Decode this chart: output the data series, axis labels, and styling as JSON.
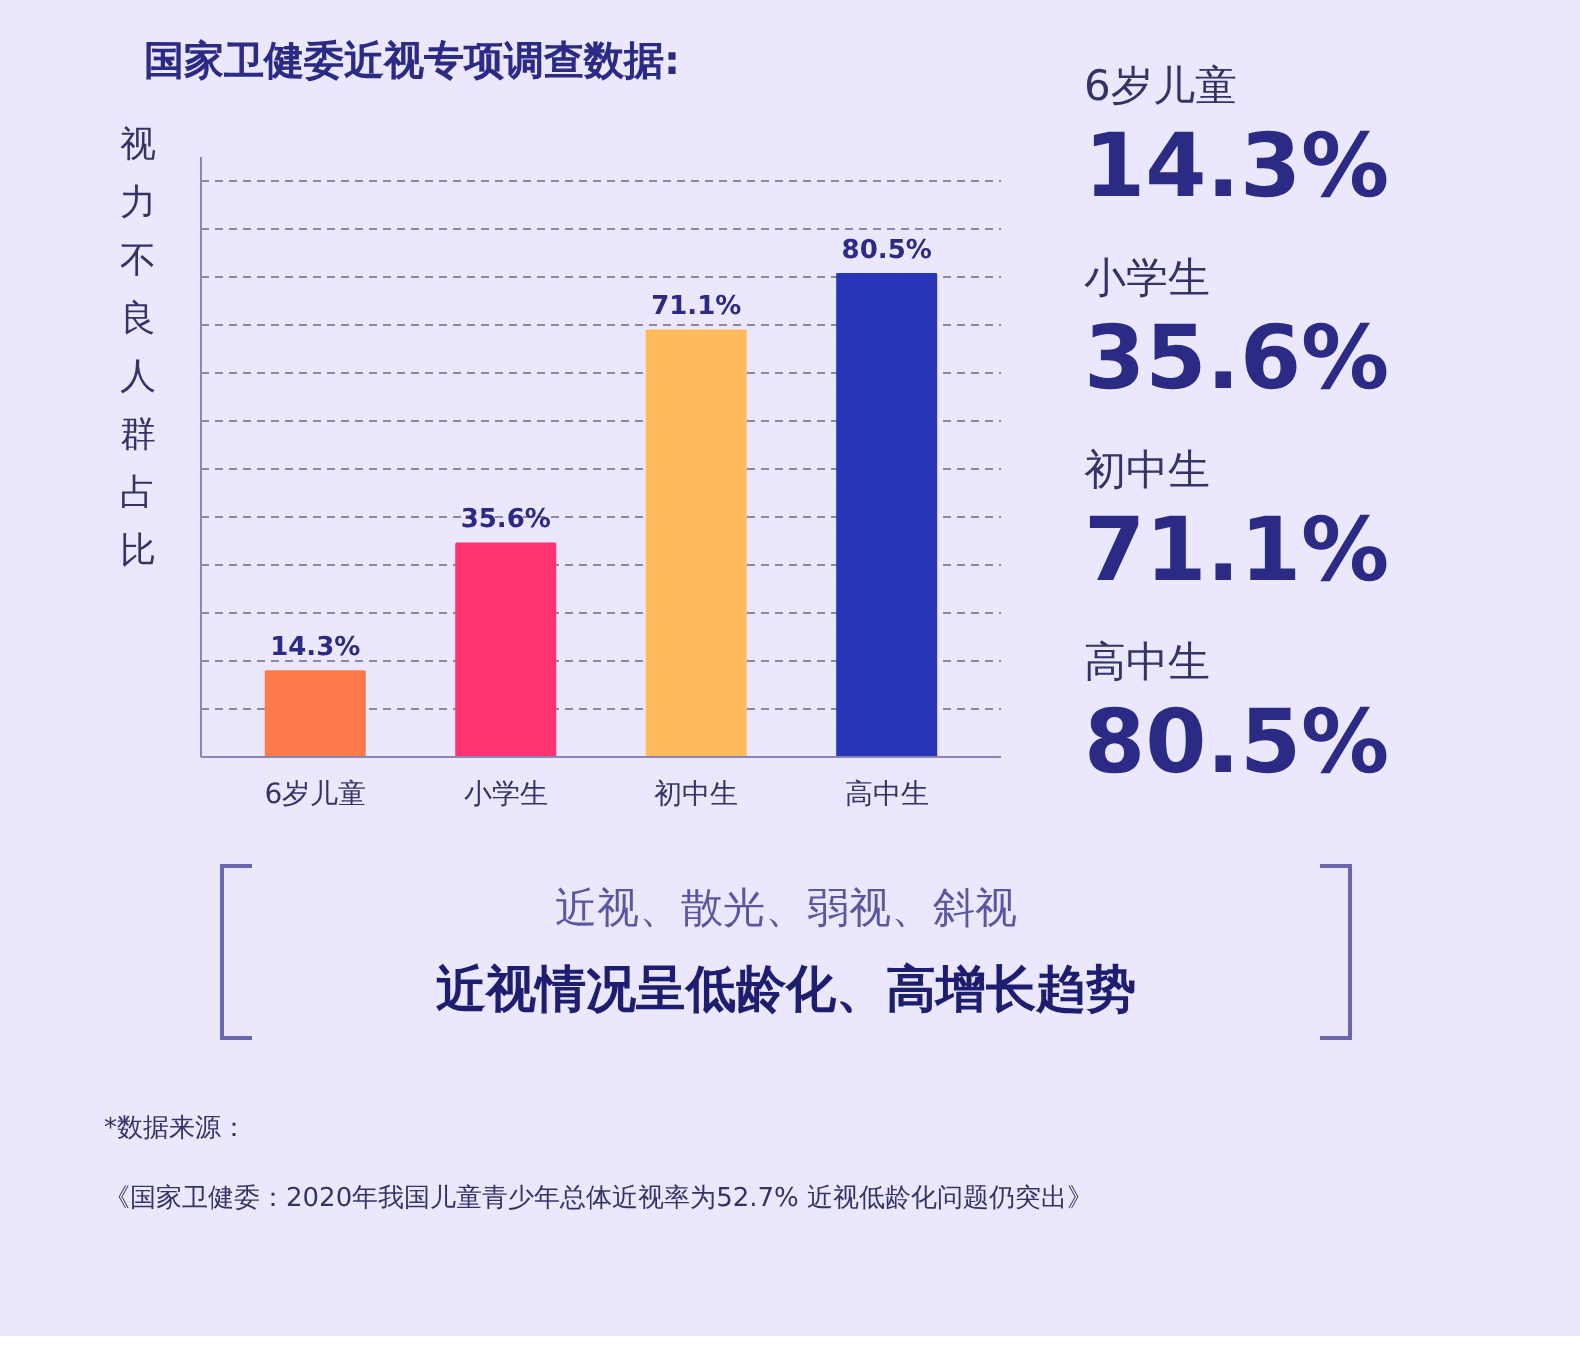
{
  "chart_data": {
    "type": "bar",
    "title": "国家卫健委近视专项调查数据:",
    "ylabel": "视力不良人群占比",
    "categories": [
      "6岁儿童",
      "小学生",
      "初中生",
      "高中生"
    ],
    "values": [
      14.3,
      35.6,
      71.1,
      80.5
    ],
    "colors": [
      "#ff7a4a",
      "#ff3370",
      "#ffbb5c",
      "#2a36b8"
    ],
    "value_labels": [
      "14.3%",
      "35.6%",
      "71.1%",
      "80.5%"
    ],
    "ylim": [
      0,
      100
    ],
    "yticks": [
      {
        "value": 8,
        "label": null
      },
      {
        "value": 16,
        "label": null
      },
      {
        "value": 24,
        "label": null
      },
      {
        "value": 32,
        "label": null
      },
      {
        "value": 40,
        "label": null
      },
      {
        "value": 48,
        "label": null
      },
      {
        "value": 56,
        "label": null
      },
      {
        "value": 64,
        "label": null
      },
      {
        "value": 72,
        "label": null
      },
      {
        "value": 80,
        "label": null
      },
      {
        "value": 88,
        "label": null
      },
      {
        "value": 96,
        "label": null
      }
    ],
    "grid": "y",
    "tick_labels": "x",
    "legend": false,
    "annotations": [
      "6岁儿童",
      "14.3%",
      "小学生",
      "35.6%",
      "初中生",
      "71.1%",
      "高中生",
      "80.5%",
      "近视、散光、弱视、斜视",
      "近视情况呈低龄化、高增长趋势",
      "*数据来源：",
      "《国家卫健委：2020年我国儿童青少年总体近视率为52.7% 近视低龄化问题仍突出》"
    ]
  }
}
